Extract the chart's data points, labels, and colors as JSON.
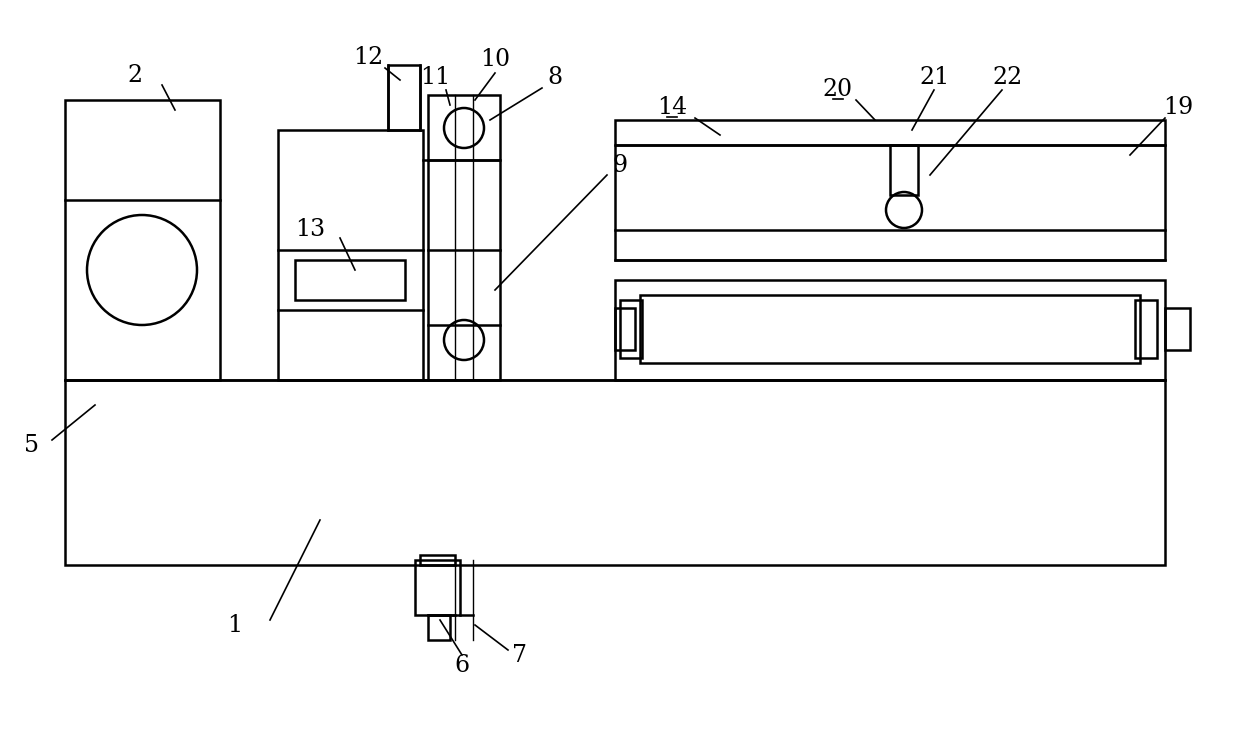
{
  "bg_color": "#ffffff",
  "line_color": "#000000",
  "lw": 1.8,
  "lw_thin": 1.0,
  "fig_width": 12.4,
  "fig_height": 7.3
}
